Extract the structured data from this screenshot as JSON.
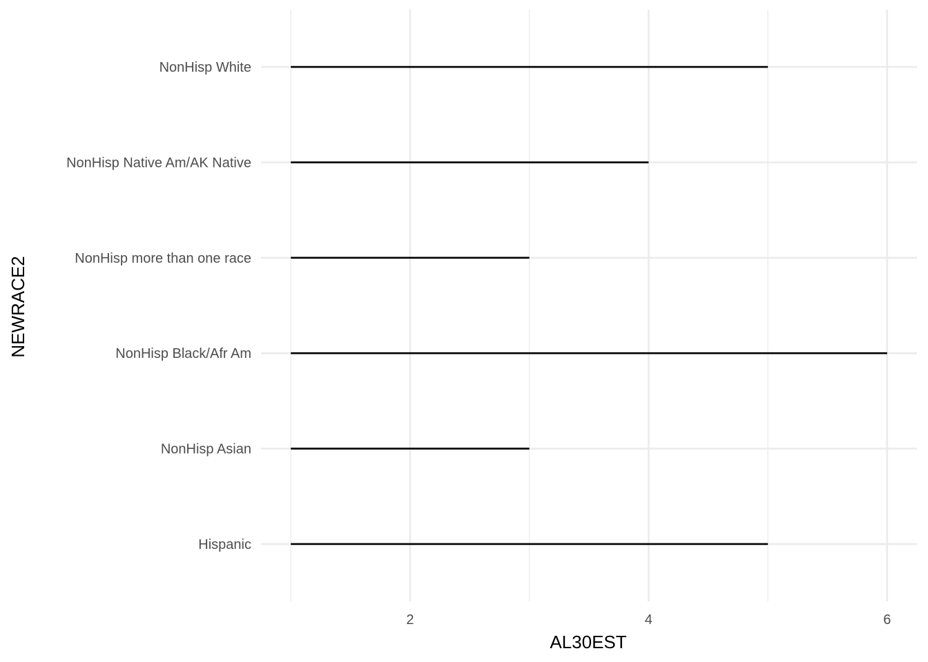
{
  "chart_data": {
    "type": "line",
    "orientation": "horizontal-segments",
    "xlabel": "AL30EST",
    "ylabel": "NEWRACE2",
    "xlim": [
      0.75,
      6.25
    ],
    "x_ticks": [
      2,
      4,
      6
    ],
    "x_minor_ticks": [
      1,
      3,
      5
    ],
    "grid": true,
    "categories": [
      "Hispanic",
      "NonHisp Asian",
      "NonHisp Black/Afr Am",
      "NonHisp more than one race",
      "NonHisp Native Am/AK Native",
      "NonHisp White"
    ],
    "segments": [
      {
        "category": "Hispanic",
        "x_start": 1,
        "x_end": 5
      },
      {
        "category": "NonHisp Asian",
        "x_start": 1,
        "x_end": 3
      },
      {
        "category": "NonHisp Black/Afr Am",
        "x_start": 1,
        "x_end": 6
      },
      {
        "category": "NonHisp more than one race",
        "x_start": 1,
        "x_end": 3
      },
      {
        "category": "NonHisp Native Am/AK Native",
        "x_start": 1,
        "x_end": 4
      },
      {
        "category": "NonHisp White",
        "x_start": 1,
        "x_end": 5
      }
    ]
  }
}
